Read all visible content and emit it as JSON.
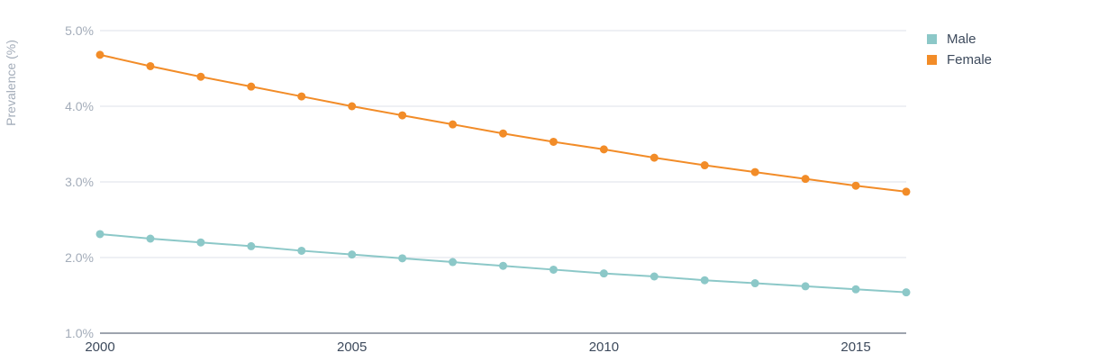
{
  "chart_data": {
    "type": "line",
    "title": "",
    "xlabel": "",
    "ylabel": "Prevalence (%)",
    "x": [
      2000,
      2001,
      2002,
      2003,
      2004,
      2005,
      2006,
      2007,
      2008,
      2009,
      2010,
      2011,
      2012,
      2013,
      2014,
      2015,
      2016
    ],
    "xlim": [
      2000,
      2016
    ],
    "xticks": [
      "2000",
      "2005",
      "2010",
      "2015"
    ],
    "ylim": [
      1.0,
      5.0
    ],
    "yticks": [
      "1.0%",
      "2.0%",
      "3.0%",
      "4.0%",
      "5.0%"
    ],
    "grid": true,
    "legend_position": "top-right",
    "series": [
      {
        "name": "Male",
        "color": "#8cc8c8",
        "values": [
          2.31,
          2.25,
          2.2,
          2.15,
          2.09,
          2.04,
          1.99,
          1.94,
          1.89,
          1.84,
          1.79,
          1.75,
          1.7,
          1.66,
          1.62,
          1.58,
          1.54
        ]
      },
      {
        "name": "Female",
        "color": "#f28c28",
        "values": [
          4.68,
          4.53,
          4.39,
          4.26,
          4.13,
          4.0,
          3.88,
          3.76,
          3.64,
          3.53,
          3.43,
          3.32,
          3.22,
          3.13,
          3.04,
          2.95,
          2.87
        ]
      }
    ]
  }
}
